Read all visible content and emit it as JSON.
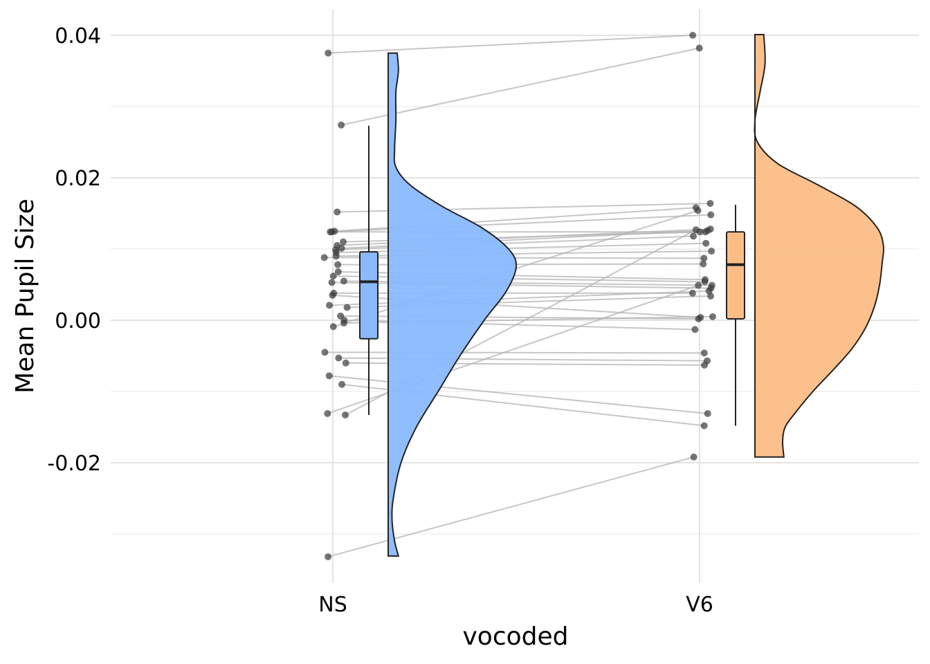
{
  "chart_data": {
    "type": "raincloud",
    "xlabel": "vocoded",
    "ylabel": "Mean Pupil Size",
    "categories": [
      "NS",
      "V6"
    ],
    "y_ticks": [
      "0.04",
      "0.02",
      "0.00",
      "-0.02"
    ],
    "y_tick_values": [
      0.04,
      0.02,
      0.0,
      -0.02
    ],
    "ylim": [
      -0.037,
      0.0435
    ],
    "grid": true,
    "legend": "none",
    "colors": {
      "NS": "#8ab9fd",
      "V6": "#fbbd86",
      "lines": "#b3b3b3",
      "points": "#3b3b3b"
    },
    "boxplots": [
      {
        "category": "NS",
        "lower_whisker": -0.0133,
        "q1": -0.0026,
        "median": 0.0054,
        "q3": 0.0096,
        "upper_whisker": 0.0273
      },
      {
        "category": "V6",
        "lower_whisker": -0.0148,
        "q1": 0.0002,
        "median": 0.0078,
        "q3": 0.0124,
        "upper_whisker": 0.0162
      }
    ],
    "density": [
      {
        "category": "NS",
        "y": [
          -0.0331,
          -0.031,
          -0.028,
          -0.025,
          -0.02,
          -0.015,
          -0.01,
          -0.005,
          0.0,
          0.004,
          0.0075,
          0.01,
          0.013,
          0.016,
          0.019,
          0.0215,
          0.024,
          0.028,
          0.032,
          0.035,
          0.0375
        ],
        "density": [
          0.08,
          0.05,
          0.03,
          0.04,
          0.1,
          0.22,
          0.39,
          0.56,
          0.75,
          0.92,
          1.0,
          0.94,
          0.73,
          0.42,
          0.17,
          0.06,
          0.05,
          0.06,
          0.06,
          0.08,
          0.07
        ]
      },
      {
        "category": "V6",
        "y": [
          -0.0192,
          -0.017,
          -0.015,
          -0.013,
          -0.01,
          -0.007,
          -0.004,
          -0.001,
          0.002,
          0.005,
          0.008,
          0.0105,
          0.013,
          0.016,
          0.019,
          0.022,
          0.025,
          0.028,
          0.032,
          0.036,
          0.0401
        ],
        "density": [
          0.23,
          0.22,
          0.24,
          0.32,
          0.46,
          0.62,
          0.77,
          0.88,
          0.95,
          0.99,
          1.01,
          1.02,
          0.97,
          0.8,
          0.5,
          0.18,
          0.02,
          0.0,
          0.04,
          0.08,
          0.07
        ]
      }
    ],
    "pairs": [
      [
        0.0375,
        0.04
      ],
      [
        0.0274,
        0.0382
      ],
      [
        0.0152,
        0.0164
      ],
      [
        0.0125,
        0.0158
      ],
      [
        0.0124,
        0.0148
      ],
      [
        0.011,
        0.0124
      ],
      [
        0.0101,
        0.0126
      ],
      [
        0.0099,
        0.0118
      ],
      [
        0.0095,
        0.0108
      ],
      [
        0.009,
        0.0097
      ],
      [
        0.0088,
        0.0087
      ],
      [
        0.0078,
        0.0079
      ],
      [
        0.0068,
        0.0057
      ],
      [
        0.0062,
        0.0054
      ],
      [
        0.0055,
        0.0049
      ],
      [
        0.0053,
        0.0045
      ],
      [
        0.0038,
        0.0038
      ],
      [
        0.0021,
        0.0041
      ],
      [
        0.0018,
        0.0034
      ],
      [
        0.0006,
        0.0002
      ],
      [
        0.0,
        -0.0013
      ],
      [
        -0.0004,
        0.0005
      ],
      [
        -0.0045,
        -0.0046
      ],
      [
        -0.0053,
        -0.0057
      ],
      [
        -0.006,
        -0.0063
      ],
      [
        -0.0078,
        -0.0131
      ],
      [
        -0.009,
        -0.0148
      ],
      [
        -0.0131,
        0.0049
      ],
      [
        -0.0133,
        0.0127
      ],
      [
        -0.0332,
        -0.0192
      ],
      [
        0.0124,
        0.0124
      ],
      [
        0.0105,
        0.0128
      ],
      [
        0.0035,
        0.0004
      ],
      [
        -0.0009,
        0.0154
      ]
    ]
  }
}
